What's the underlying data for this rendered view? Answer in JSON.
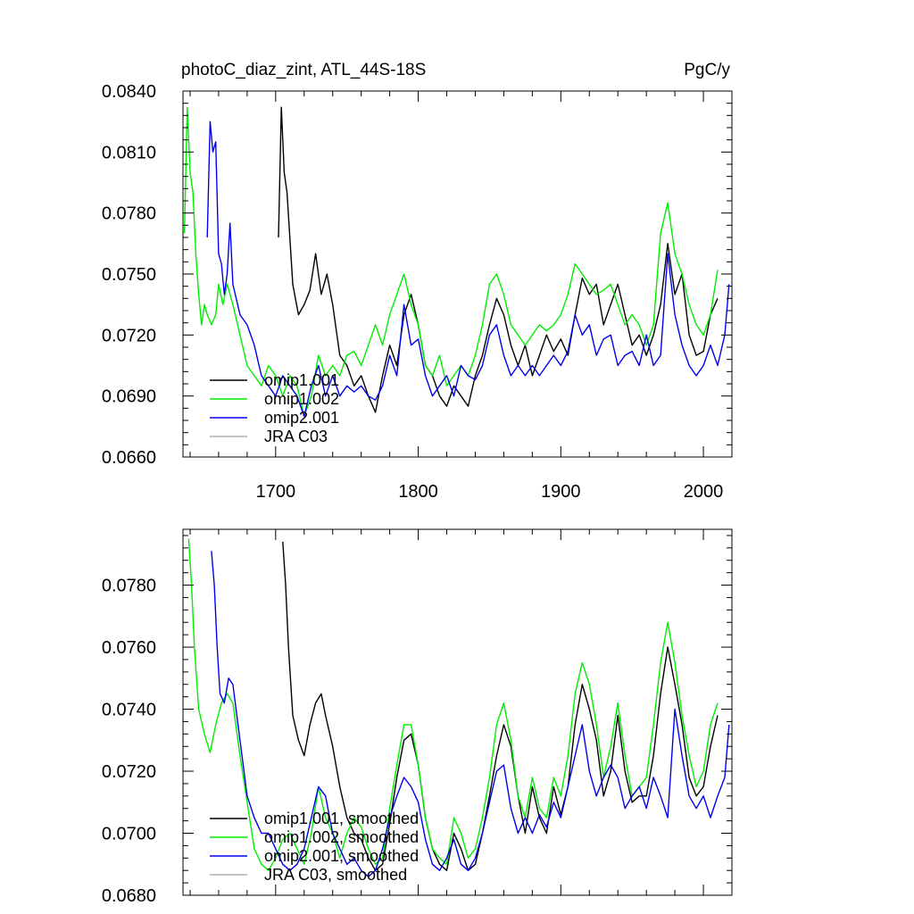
{
  "chart_data": [
    {
      "type": "line",
      "title_left": "photoC_diaz_zint, ATL_44S-18S",
      "title_right": "PgC/y",
      "xlim": [
        1635,
        2020
      ],
      "ylim": [
        0.066,
        0.084
      ],
      "x_ticks": [
        1700,
        1800,
        1900,
        2000
      ],
      "x_tick_labels": [
        "1700",
        "1800",
        "1900",
        "2000"
      ],
      "y_ticks": [
        0.066,
        0.069,
        0.072,
        0.075,
        0.078,
        0.081,
        0.084
      ],
      "y_tick_labels": [
        "0.0660",
        "0.0690",
        "0.0720",
        "0.0750",
        "0.0780",
        "0.0810",
        "0.0840"
      ],
      "legend_position": "bottom-left",
      "series": [
        {
          "name": "omip1.001",
          "color": "#000000",
          "x": [
            1702,
            1704,
            1706,
            1708,
            1712,
            1716,
            1720,
            1724,
            1728,
            1732,
            1736,
            1740,
            1745,
            1750,
            1755,
            1760,
            1765,
            1770,
            1775,
            1780,
            1785,
            1790,
            1795,
            1800,
            1805,
            1810,
            1815,
            1820,
            1825,
            1830,
            1835,
            1840,
            1845,
            1850,
            1855,
            1860,
            1865,
            1870,
            1875,
            1880,
            1885,
            1890,
            1895,
            1900,
            1905,
            1910,
            1915,
            1920,
            1925,
            1930,
            1935,
            1940,
            1945,
            1950,
            1955,
            1960,
            1965,
            1970,
            1975,
            1980,
            1985,
            1990,
            1995,
            2000,
            2005,
            2010
          ],
          "y": [
            0.0768,
            0.0832,
            0.08,
            0.079,
            0.0745,
            0.073,
            0.0735,
            0.0742,
            0.076,
            0.074,
            0.075,
            0.0735,
            0.071,
            0.0705,
            0.0695,
            0.07,
            0.069,
            0.0682,
            0.07,
            0.0715,
            0.0705,
            0.073,
            0.074,
            0.0725,
            0.0705,
            0.07,
            0.069,
            0.0685,
            0.0695,
            0.069,
            0.0685,
            0.07,
            0.071,
            0.0725,
            0.0738,
            0.073,
            0.0715,
            0.0705,
            0.0715,
            0.07,
            0.071,
            0.072,
            0.0712,
            0.0718,
            0.071,
            0.073,
            0.0748,
            0.074,
            0.0745,
            0.0725,
            0.0735,
            0.0745,
            0.073,
            0.0715,
            0.072,
            0.071,
            0.072,
            0.0735,
            0.0765,
            0.074,
            0.075,
            0.072,
            0.071,
            0.0712,
            0.073,
            0.0738
          ]
        },
        {
          "name": "omip1.002",
          "color": "#00ee00",
          "x": [
            1636,
            1638,
            1640,
            1642,
            1644,
            1646,
            1648,
            1650,
            1652,
            1655,
            1658,
            1660,
            1663,
            1666,
            1670,
            1675,
            1680,
            1685,
            1690,
            1695,
            1700,
            1705,
            1710,
            1715,
            1720,
            1725,
            1730,
            1735,
            1740,
            1745,
            1750,
            1755,
            1760,
            1765,
            1770,
            1775,
            1780,
            1785,
            1790,
            1795,
            1800,
            1805,
            1810,
            1815,
            1820,
            1825,
            1830,
            1835,
            1840,
            1845,
            1850,
            1855,
            1860,
            1865,
            1870,
            1875,
            1880,
            1885,
            1890,
            1895,
            1900,
            1905,
            1910,
            1915,
            1920,
            1925,
            1930,
            1935,
            1940,
            1945,
            1950,
            1955,
            1960,
            1965,
            1970,
            1975,
            1980,
            1985,
            1990,
            1995,
            2000,
            2005,
            2010
          ],
          "y": [
            0.077,
            0.0832,
            0.08,
            0.079,
            0.076,
            0.074,
            0.0725,
            0.0735,
            0.073,
            0.0725,
            0.073,
            0.0745,
            0.0735,
            0.0745,
            0.0735,
            0.072,
            0.0705,
            0.07,
            0.0695,
            0.0705,
            0.07,
            0.069,
            0.07,
            0.0695,
            0.068,
            0.069,
            0.071,
            0.07,
            0.0705,
            0.07,
            0.071,
            0.0712,
            0.0705,
            0.0715,
            0.0725,
            0.0715,
            0.073,
            0.074,
            0.075,
            0.0735,
            0.0725,
            0.0705,
            0.07,
            0.071,
            0.0695,
            0.07,
            0.0705,
            0.07,
            0.071,
            0.0725,
            0.0745,
            0.075,
            0.074,
            0.0725,
            0.072,
            0.0715,
            0.072,
            0.0725,
            0.0722,
            0.0725,
            0.073,
            0.074,
            0.0755,
            0.075,
            0.0745,
            0.074,
            0.0742,
            0.0745,
            0.0735,
            0.0725,
            0.073,
            0.0725,
            0.0715,
            0.0725,
            0.077,
            0.0785,
            0.076,
            0.075,
            0.0735,
            0.0725,
            0.072,
            0.073,
            0.0752
          ]
        },
        {
          "name": "omip2.001",
          "color": "#0000ee",
          "x": [
            1652,
            1654,
            1656,
            1658,
            1660,
            1662,
            1664,
            1666,
            1668,
            1670,
            1675,
            1680,
            1685,
            1690,
            1695,
            1700,
            1705,
            1710,
            1715,
            1720,
            1725,
            1730,
            1735,
            1740,
            1745,
            1750,
            1755,
            1760,
            1765,
            1770,
            1775,
            1780,
            1785,
            1790,
            1795,
            1800,
            1805,
            1810,
            1815,
            1820,
            1825,
            1830,
            1835,
            1840,
            1845,
            1850,
            1855,
            1860,
            1865,
            1870,
            1875,
            1880,
            1885,
            1890,
            1895,
            1900,
            1905,
            1910,
            1915,
            1920,
            1925,
            1930,
            1935,
            1940,
            1945,
            1950,
            1955,
            1960,
            1965,
            1970,
            1975,
            1980,
            1985,
            1990,
            1995,
            2000,
            2005,
            2010,
            2015,
            2018
          ],
          "y": [
            0.0768,
            0.0825,
            0.081,
            0.0815,
            0.076,
            0.0755,
            0.074,
            0.075,
            0.0775,
            0.0745,
            0.073,
            0.0725,
            0.0715,
            0.07,
            0.0695,
            0.069,
            0.07,
            0.0695,
            0.069,
            0.068,
            0.0695,
            0.0705,
            0.069,
            0.07,
            0.069,
            0.0695,
            0.0692,
            0.0695,
            0.069,
            0.0688,
            0.0695,
            0.071,
            0.07,
            0.0735,
            0.0715,
            0.0718,
            0.07,
            0.069,
            0.0695,
            0.07,
            0.069,
            0.0705,
            0.07,
            0.0698,
            0.0705,
            0.072,
            0.0725,
            0.071,
            0.07,
            0.0705,
            0.07,
            0.0705,
            0.07,
            0.0705,
            0.071,
            0.0705,
            0.0712,
            0.073,
            0.072,
            0.0725,
            0.071,
            0.0718,
            0.072,
            0.0705,
            0.071,
            0.0712,
            0.0705,
            0.072,
            0.0705,
            0.071,
            0.076,
            0.073,
            0.0715,
            0.0705,
            0.07,
            0.0705,
            0.0715,
            0.0705,
            0.072,
            0.0745
          ]
        },
        {
          "name": "JRA C03",
          "color": "#b0b0b0",
          "x": [],
          "y": []
        }
      ]
    },
    {
      "type": "line",
      "title_left": "",
      "title_right": "",
      "xlim": [
        1635,
        2020
      ],
      "ylim": [
        0.068,
        0.0798
      ],
      "x_ticks": [
        1700,
        1800,
        1900,
        2000
      ],
      "x_tick_labels": [
        "",
        "",
        "",
        ""
      ],
      "y_ticks": [
        0.068,
        0.07,
        0.072,
        0.074,
        0.076,
        0.078
      ],
      "y_tick_labels": [
        "0.0680",
        "0.0700",
        "0.0720",
        "0.0740",
        "0.0760",
        "0.0780"
      ],
      "legend_position": "bottom-left",
      "series": [
        {
          "name": "omip1.001, smoothed",
          "color": "#000000",
          "x": [
            1705,
            1707,
            1709,
            1712,
            1716,
            1720,
            1724,
            1728,
            1732,
            1735,
            1740,
            1745,
            1750,
            1755,
            1760,
            1765,
            1770,
            1775,
            1780,
            1785,
            1790,
            1795,
            1800,
            1805,
            1810,
            1815,
            1820,
            1825,
            1830,
            1835,
            1840,
            1845,
            1850,
            1855,
            1860,
            1865,
            1870,
            1875,
            1880,
            1885,
            1890,
            1895,
            1900,
            1905,
            1910,
            1915,
            1920,
            1925,
            1930,
            1935,
            1940,
            1945,
            1950,
            1955,
            1960,
            1965,
            1970,
            1975,
            1980,
            1985,
            1990,
            1995,
            2000,
            2005,
            2010
          ],
          "y": [
            0.0794,
            0.078,
            0.076,
            0.0738,
            0.073,
            0.0725,
            0.0735,
            0.0742,
            0.0745,
            0.0738,
            0.0728,
            0.0715,
            0.0705,
            0.07,
            0.0698,
            0.0692,
            0.0688,
            0.069,
            0.0703,
            0.0718,
            0.073,
            0.0732,
            0.0722,
            0.0705,
            0.0695,
            0.069,
            0.0688,
            0.07,
            0.0695,
            0.0688,
            0.069,
            0.07,
            0.0712,
            0.0725,
            0.0735,
            0.0728,
            0.0712,
            0.07,
            0.0715,
            0.0705,
            0.07,
            0.0715,
            0.0706,
            0.0715,
            0.0735,
            0.0748,
            0.074,
            0.073,
            0.0712,
            0.072,
            0.0738,
            0.072,
            0.071,
            0.0712,
            0.0712,
            0.0725,
            0.0745,
            0.076,
            0.0748,
            0.0735,
            0.0718,
            0.0712,
            0.0715,
            0.0728,
            0.0738
          ]
        },
        {
          "name": "omip1.002, smoothed",
          "color": "#00ee00",
          "x": [
            1639,
            1641,
            1643,
            1646,
            1650,
            1654,
            1658,
            1662,
            1666,
            1670,
            1675,
            1680,
            1685,
            1690,
            1695,
            1700,
            1705,
            1710,
            1715,
            1720,
            1725,
            1730,
            1735,
            1740,
            1745,
            1750,
            1755,
            1760,
            1765,
            1770,
            1775,
            1780,
            1785,
            1790,
            1795,
            1800,
            1805,
            1810,
            1815,
            1820,
            1825,
            1830,
            1835,
            1840,
            1845,
            1850,
            1855,
            1860,
            1865,
            1870,
            1875,
            1880,
            1885,
            1890,
            1895,
            1900,
            1905,
            1910,
            1915,
            1920,
            1925,
            1930,
            1935,
            1940,
            1945,
            1950,
            1955,
            1960,
            1965,
            1970,
            1975,
            1980,
            1985,
            1990,
            1995,
            2000,
            2005,
            2010
          ],
          "y": [
            0.0795,
            0.078,
            0.076,
            0.074,
            0.0732,
            0.0726,
            0.0735,
            0.0742,
            0.0745,
            0.0742,
            0.0725,
            0.071,
            0.0695,
            0.069,
            0.0688,
            0.0692,
            0.0698,
            0.07,
            0.0695,
            0.069,
            0.07,
            0.0715,
            0.0705,
            0.07,
            0.0692,
            0.07,
            0.0705,
            0.0702,
            0.0695,
            0.069,
            0.0692,
            0.0708,
            0.0722,
            0.0735,
            0.0735,
            0.0722,
            0.0705,
            0.0695,
            0.0692,
            0.069,
            0.0705,
            0.07,
            0.0692,
            0.0695,
            0.0705,
            0.0718,
            0.0735,
            0.0742,
            0.073,
            0.0712,
            0.0705,
            0.0718,
            0.0708,
            0.0705,
            0.0718,
            0.0712,
            0.0725,
            0.0745,
            0.0755,
            0.0748,
            0.0735,
            0.0718,
            0.0728,
            0.0742,
            0.0725,
            0.0712,
            0.0715,
            0.0718,
            0.0735,
            0.0755,
            0.0768,
            0.0755,
            0.0738,
            0.0725,
            0.0715,
            0.072,
            0.0735,
            0.0742
          ]
        },
        {
          "name": "omip2.001, smoothed",
          "color": "#0000ee",
          "x": [
            1655,
            1657,
            1659,
            1661,
            1664,
            1667,
            1670,
            1675,
            1680,
            1685,
            1690,
            1695,
            1700,
            1705,
            1710,
            1715,
            1720,
            1725,
            1730,
            1735,
            1740,
            1745,
            1750,
            1755,
            1760,
            1765,
            1770,
            1775,
            1780,
            1785,
            1790,
            1795,
            1800,
            1805,
            1810,
            1815,
            1820,
            1825,
            1830,
            1835,
            1840,
            1845,
            1850,
            1855,
            1860,
            1865,
            1870,
            1875,
            1880,
            1885,
            1890,
            1895,
            1900,
            1905,
            1910,
            1915,
            1920,
            1925,
            1930,
            1935,
            1940,
            1945,
            1950,
            1955,
            1960,
            1965,
            1970,
            1975,
            1980,
            1985,
            1990,
            1995,
            2000,
            2005,
            2010,
            2015,
            2018
          ],
          "y": [
            0.0791,
            0.078,
            0.076,
            0.0745,
            0.0742,
            0.075,
            0.0748,
            0.073,
            0.0712,
            0.0705,
            0.07,
            0.07,
            0.0695,
            0.069,
            0.0688,
            0.069,
            0.0695,
            0.0705,
            0.0715,
            0.0712,
            0.07,
            0.0695,
            0.069,
            0.0692,
            0.0688,
            0.0686,
            0.0688,
            0.0695,
            0.0705,
            0.0712,
            0.0718,
            0.0715,
            0.071,
            0.0698,
            0.069,
            0.0688,
            0.0692,
            0.0698,
            0.069,
            0.0688,
            0.0692,
            0.07,
            0.071,
            0.072,
            0.0722,
            0.0708,
            0.07,
            0.0705,
            0.07,
            0.0706,
            0.0702,
            0.071,
            0.0705,
            0.0715,
            0.0725,
            0.0735,
            0.072,
            0.0712,
            0.0718,
            0.0722,
            0.0718,
            0.0708,
            0.0712,
            0.0715,
            0.0708,
            0.0718,
            0.0712,
            0.0705,
            0.074,
            0.0725,
            0.0712,
            0.0708,
            0.0712,
            0.0705,
            0.0712,
            0.0718,
            0.0735
          ]
        },
        {
          "name": "JRA C03, smoothed",
          "color": "#b0b0b0",
          "x": [],
          "y": []
        }
      ]
    }
  ]
}
